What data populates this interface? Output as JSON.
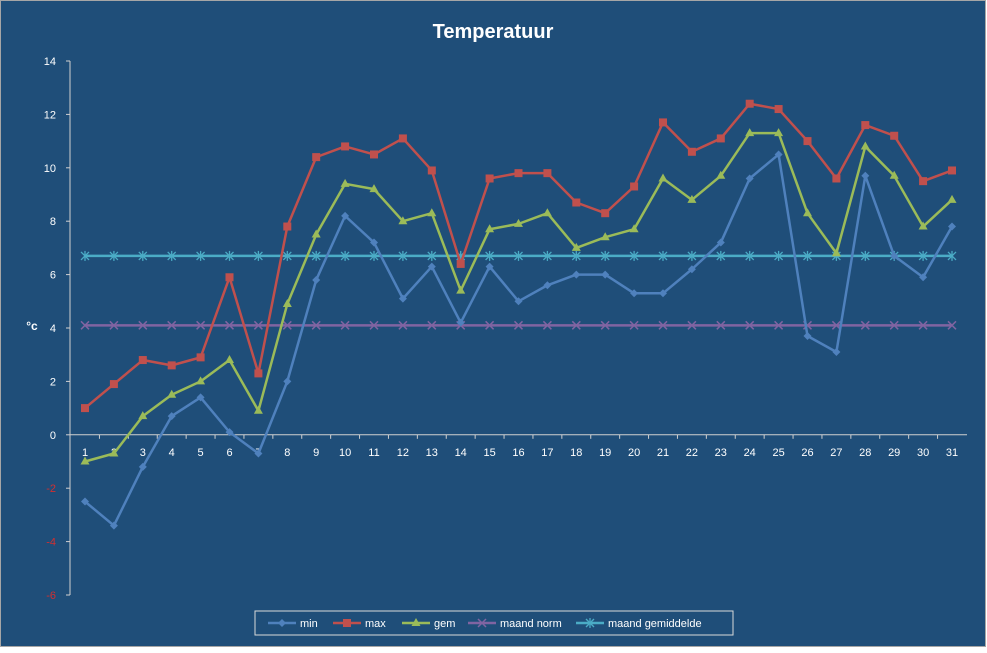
{
  "chart_data": {
    "type": "line",
    "title": "Temperatuur",
    "xlabel": "",
    "ylabel": "°c",
    "ylim": [
      -6,
      14
    ],
    "yticks": [
      -6,
      -4,
      -2,
      0,
      2,
      4,
      6,
      8,
      10,
      12,
      14
    ],
    "x": [
      1,
      2,
      3,
      4,
      5,
      6,
      7,
      8,
      9,
      10,
      11,
      12,
      13,
      14,
      15,
      16,
      17,
      18,
      19,
      20,
      21,
      22,
      23,
      24,
      25,
      26,
      27,
      28,
      29,
      30,
      31
    ],
    "grid": false,
    "legend_position": "bottom",
    "colors": {
      "background": "#1f4e79",
      "axis": "#d0d0d0",
      "legend_bg": "#1f4e79"
    },
    "series": [
      {
        "name": "min",
        "color": "#4f81bd",
        "marker": "diamond",
        "values": [
          -2.5,
          -3.4,
          -1.2,
          0.7,
          1.4,
          0.1,
          -0.7,
          2.0,
          5.8,
          8.2,
          7.2,
          5.1,
          6.3,
          4.2,
          6.3,
          5.0,
          5.6,
          6.0,
          6.0,
          5.3,
          5.3,
          6.2,
          7.2,
          9.6,
          10.5,
          3.7,
          3.1,
          9.7,
          6.7,
          5.9,
          7.8
        ]
      },
      {
        "name": "max",
        "color": "#c0504d",
        "marker": "square",
        "values": [
          1.0,
          1.9,
          2.8,
          2.6,
          2.9,
          5.9,
          2.3,
          7.8,
          10.4,
          10.8,
          10.5,
          11.1,
          9.9,
          6.4,
          9.6,
          9.8,
          9.8,
          8.7,
          8.3,
          9.3,
          11.7,
          10.6,
          11.1,
          12.4,
          12.2,
          11.0,
          9.6,
          11.6,
          11.2,
          9.5,
          9.9
        ]
      },
      {
        "name": "gem",
        "color": "#9bbb59",
        "marker": "triangle",
        "values": [
          -1.0,
          -0.7,
          0.7,
          1.5,
          2.0,
          2.8,
          0.9,
          4.9,
          7.5,
          9.4,
          9.2,
          8.0,
          8.3,
          5.4,
          7.7,
          7.9,
          8.3,
          7.0,
          7.4,
          7.7,
          9.6,
          8.8,
          9.7,
          11.3,
          11.3,
          8.3,
          6.8,
          10.8,
          9.7,
          7.8,
          8.8
        ]
      },
      {
        "name": "maand norm",
        "color": "#8064a2",
        "marker": "x",
        "values": [
          4.1,
          4.1,
          4.1,
          4.1,
          4.1,
          4.1,
          4.1,
          4.1,
          4.1,
          4.1,
          4.1,
          4.1,
          4.1,
          4.1,
          4.1,
          4.1,
          4.1,
          4.1,
          4.1,
          4.1,
          4.1,
          4.1,
          4.1,
          4.1,
          4.1,
          4.1,
          4.1,
          4.1,
          4.1,
          4.1,
          4.1
        ]
      },
      {
        "name": "maand gemiddelde",
        "color": "#4bacc6",
        "marker": "star",
        "values": [
          6.7,
          6.7,
          6.7,
          6.7,
          6.7,
          6.7,
          6.7,
          6.7,
          6.7,
          6.7,
          6.7,
          6.7,
          6.7,
          6.7,
          6.7,
          6.7,
          6.7,
          6.7,
          6.7,
          6.7,
          6.7,
          6.7,
          6.7,
          6.7,
          6.7,
          6.7,
          6.7,
          6.7,
          6.7,
          6.7,
          6.7
        ]
      }
    ]
  }
}
